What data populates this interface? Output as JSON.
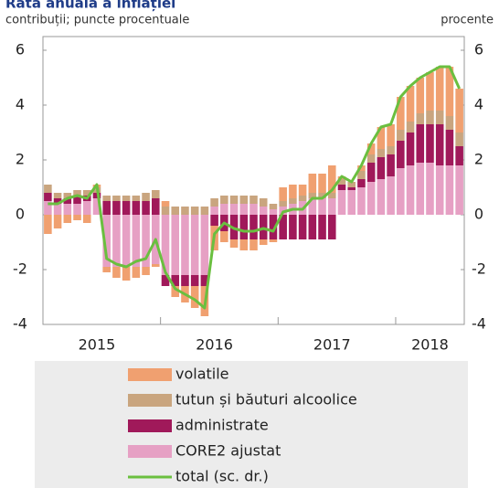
{
  "chart_data": {
    "type": "stacked_bar_line",
    "title": "Rata anuală a inflației",
    "y_label": "contribuții; puncte procentuale",
    "y2_label": "procente",
    "categories": [
      null,
      null,
      null,
      null,
      null,
      "2015",
      null,
      null,
      null,
      null,
      null,
      null,
      null,
      null,
      null,
      null,
      null,
      "2016",
      null,
      null,
      null,
      null,
      null,
      null,
      null,
      null,
      null,
      null,
      null,
      "2017",
      null,
      null,
      null,
      null,
      null,
      null,
      null,
      null,
      null,
      "2018",
      null,
      null,
      null
    ],
    "ylim": [
      -4,
      6.5
    ],
    "yticks": [
      -4,
      -2,
      0,
      2,
      4,
      6
    ],
    "y2lim": [
      -4,
      6.5
    ],
    "y2ticks": [
      -4,
      -2,
      0,
      2,
      4,
      6
    ],
    "series": [
      {
        "name": "volatile",
        "color": "#f0a070",
        "kind": "bar",
        "values": [
          -0.7,
          -0.5,
          -0.3,
          -0.2,
          -0.3,
          0.1,
          -0.2,
          -0.4,
          -0.5,
          -0.4,
          -0.3,
          -0.1,
          0.2,
          -0.4,
          -0.6,
          -0.8,
          -1.1,
          -0.9,
          -0.4,
          -0.3,
          -0.4,
          -0.4,
          -0.2,
          -0.1,
          0.5,
          0.5,
          0.4,
          0.7,
          0.7,
          1.0,
          0.1,
          0.0,
          0.2,
          0.4,
          0.8,
          0.8,
          1.2,
          1.3,
          1.3,
          1.4,
          1.6,
          1.8,
          1.6
        ]
      },
      {
        "name": "tutun și băuturi alcoolice",
        "color": "#c9a57f",
        "kind": "bar",
        "values": [
          0.3,
          0.2,
          0.2,
          0.2,
          0.2,
          0.2,
          0.2,
          0.2,
          0.2,
          0.2,
          0.3,
          0.3,
          0.3,
          0.3,
          0.3,
          0.3,
          0.3,
          0.3,
          0.3,
          0.3,
          0.3,
          0.3,
          0.3,
          0.2,
          0.2,
          0.2,
          0.2,
          0.2,
          0.2,
          0.2,
          0.2,
          0.2,
          0.3,
          0.3,
          0.3,
          0.3,
          0.4,
          0.4,
          0.4,
          0.5,
          0.5,
          0.5,
          0.5
        ]
      },
      {
        "name": "administrate",
        "color": "#a0195a",
        "kind": "bar",
        "values": [
          0.3,
          0.2,
          0.2,
          0.3,
          0.2,
          0.2,
          0.5,
          0.5,
          0.5,
          0.5,
          0.5,
          0.6,
          -0.4,
          -0.4,
          -0.4,
          -0.4,
          -0.4,
          -0.4,
          -0.6,
          -0.9,
          -0.9,
          -0.9,
          -0.9,
          -0.9,
          -0.9,
          -0.9,
          -0.9,
          -0.9,
          -0.9,
          -0.9,
          0.2,
          0.1,
          0.3,
          0.7,
          0.8,
          0.8,
          1.0,
          1.2,
          1.4,
          1.4,
          1.5,
          1.3,
          0.7
        ]
      },
      {
        "name": "CORE2 ajustat",
        "color": "#e6a0c4",
        "kind": "bar",
        "values": [
          0.5,
          0.4,
          0.4,
          0.4,
          0.5,
          0.6,
          -1.9,
          -1.9,
          -1.9,
          -1.9,
          -1.9,
          -1.8,
          -2.2,
          -2.2,
          -2.2,
          -2.2,
          -2.2,
          0.3,
          0.4,
          0.4,
          0.4,
          0.4,
          0.3,
          0.2,
          0.3,
          0.4,
          0.5,
          0.6,
          0.6,
          0.6,
          0.9,
          0.9,
          1.0,
          1.2,
          1.3,
          1.4,
          1.7,
          1.8,
          1.9,
          1.9,
          1.8,
          1.8,
          1.8
        ]
      },
      {
        "name": "total (sc. dr.)",
        "color": "#6abf3f",
        "kind": "line",
        "axis": "y2",
        "values": [
          0.4,
          0.4,
          0.6,
          0.7,
          0.6,
          1.1,
          -1.6,
          -1.8,
          -1.9,
          -1.7,
          -1.6,
          -0.9,
          -2.1,
          -2.7,
          -2.9,
          -3.1,
          -3.4,
          -0.7,
          -0.3,
          -0.5,
          -0.6,
          -0.6,
          -0.5,
          -0.6,
          0.1,
          0.2,
          0.2,
          0.6,
          0.6,
          0.9,
          1.4,
          1.2,
          1.8,
          2.6,
          3.2,
          3.3,
          4.3,
          4.7,
          5.0,
          5.2,
          5.4,
          5.4,
          4.6
        ]
      }
    ]
  }
}
